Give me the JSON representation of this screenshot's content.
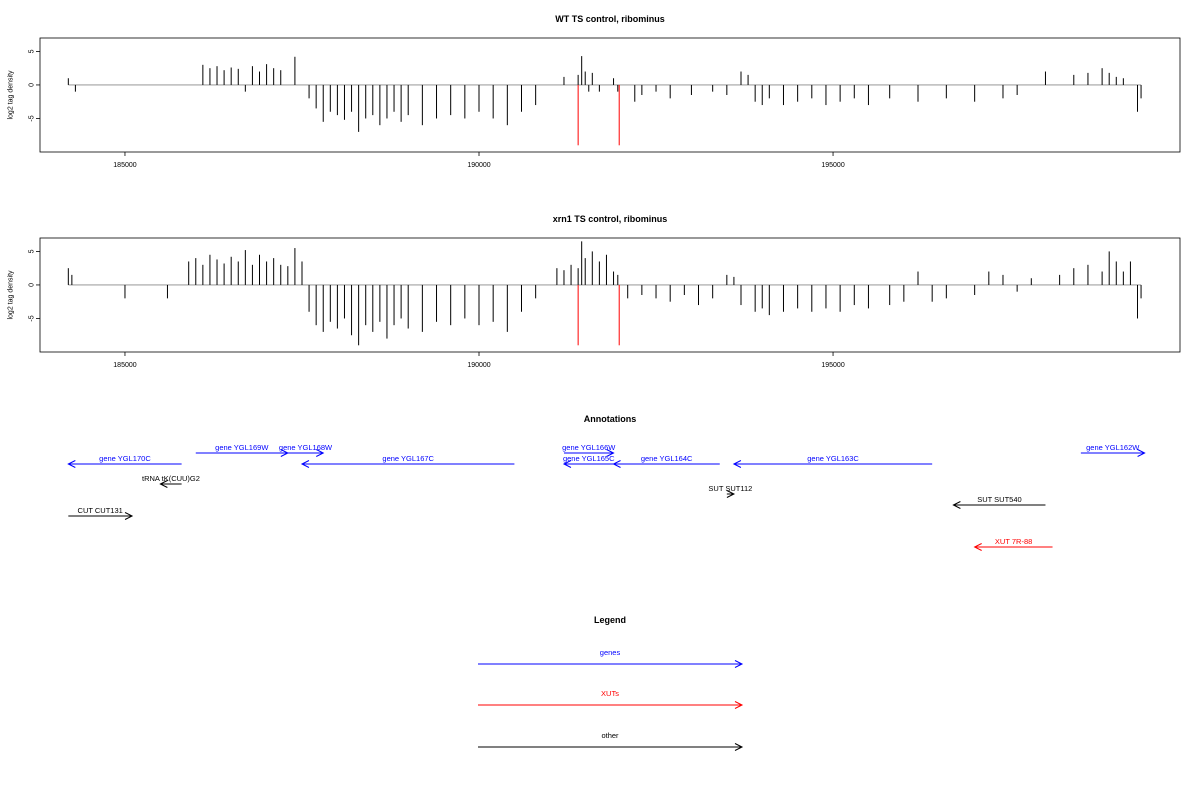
{
  "chart_data": [
    {
      "type": "bar",
      "title": "WT TS control, ribominus",
      "xlabel": "",
      "ylabel": "log2 tag density",
      "xlim": [
        183800,
        199900
      ],
      "ylim": [
        -10,
        7
      ],
      "xticks": [
        185000,
        190000,
        195000
      ],
      "xtick_labels": [
        "185000",
        "190000",
        "195000"
      ],
      "yticks": [
        5,
        0,
        -5
      ],
      "ytick_labels": [
        "5",
        "0",
        "-5"
      ],
      "grid": false,
      "markers": [
        {
          "x": 191400,
          "color": "#ff0000"
        },
        {
          "x": 191980,
          "color": "#ff0000"
        }
      ],
      "series": [
        {
          "values": [
            [
              184200,
              1.0
            ],
            [
              184300,
              -1.0
            ],
            [
              186100,
              3.0
            ],
            [
              186200,
              2.5
            ],
            [
              186300,
              2.8
            ],
            [
              186400,
              2.2
            ],
            [
              186500,
              2.6
            ],
            [
              186600,
              2.4
            ],
            [
              186700,
              -1.0
            ],
            [
              186800,
              2.8
            ],
            [
              186900,
              2.0
            ],
            [
              187000,
              3.1
            ],
            [
              187100,
              2.5
            ],
            [
              187200,
              2.2
            ],
            [
              187400,
              4.2
            ],
            [
              187600,
              -2.0
            ],
            [
              187700,
              -3.5
            ],
            [
              187800,
              -5.5
            ],
            [
              187900,
              -4.0
            ],
            [
              188000,
              -4.5
            ],
            [
              188100,
              -5.2
            ],
            [
              188200,
              -4.0
            ],
            [
              188300,
              -7.0
            ],
            [
              188400,
              -5.0
            ],
            [
              188500,
              -4.5
            ],
            [
              188600,
              -6.0
            ],
            [
              188700,
              -5.0
            ],
            [
              188800,
              -4.0
            ],
            [
              188900,
              -5.5
            ],
            [
              189000,
              -4.5
            ],
            [
              189200,
              -6.0
            ],
            [
              189400,
              -5.0
            ],
            [
              189600,
              -4.5
            ],
            [
              189800,
              -5.0
            ],
            [
              190000,
              -4.0
            ],
            [
              190200,
              -5.0
            ],
            [
              190400,
              -6.0
            ],
            [
              190600,
              -4.0
            ],
            [
              190800,
              -3.0
            ],
            [
              191200,
              1.2
            ],
            [
              191400,
              1.5
            ],
            [
              191450,
              4.3
            ],
            [
              191500,
              2.0
            ],
            [
              191550,
              -1.0
            ],
            [
              191600,
              1.8
            ],
            [
              191700,
              -1.0
            ],
            [
              191900,
              1.0
            ],
            [
              191960,
              -1.0
            ],
            [
              192200,
              -2.5
            ],
            [
              192300,
              -1.5
            ],
            [
              192500,
              -1.0
            ],
            [
              192700,
              -2.0
            ],
            [
              193000,
              -1.5
            ],
            [
              193300,
              -1.0
            ],
            [
              193500,
              -1.5
            ],
            [
              193700,
              2.0
            ],
            [
              193800,
              1.5
            ],
            [
              193900,
              -2.5
            ],
            [
              194000,
              -3.0
            ],
            [
              194100,
              -2.0
            ],
            [
              194300,
              -3.0
            ],
            [
              194500,
              -2.5
            ],
            [
              194700,
              -2.0
            ],
            [
              194900,
              -3.0
            ],
            [
              195100,
              -2.5
            ],
            [
              195300,
              -2.0
            ],
            [
              195500,
              -3.0
            ],
            [
              195800,
              -2.0
            ],
            [
              196200,
              -2.5
            ],
            [
              196600,
              -2.0
            ],
            [
              197000,
              -2.5
            ],
            [
              197400,
              -2.0
            ],
            [
              197600,
              -1.5
            ],
            [
              198000,
              2.0
            ],
            [
              198400,
              1.5
            ],
            [
              198600,
              1.8
            ],
            [
              198800,
              2.5
            ],
            [
              198900,
              1.8
            ],
            [
              199000,
              1.2
            ],
            [
              199100,
              1.0
            ],
            [
              199300,
              -4.0
            ],
            [
              199350,
              -2.0
            ]
          ]
        }
      ]
    },
    {
      "type": "bar",
      "title": "xrn1 TS control, ribominus",
      "xlabel": "",
      "ylabel": "log2 tag density",
      "xlim": [
        183800,
        199900
      ],
      "ylim": [
        -10,
        7
      ],
      "xticks": [
        185000,
        190000,
        195000
      ],
      "xtick_labels": [
        "185000",
        "190000",
        "195000"
      ],
      "yticks": [
        5,
        0,
        -5
      ],
      "ytick_labels": [
        "5",
        "0",
        "-5"
      ],
      "grid": false,
      "markers": [
        {
          "x": 191400,
          "color": "#ff0000"
        },
        {
          "x": 191980,
          "color": "#ff0000"
        }
      ],
      "series": [
        {
          "values": [
            [
              184200,
              2.5
            ],
            [
              184250,
              1.5
            ],
            [
              185000,
              -2.0
            ],
            [
              185600,
              -2.0
            ],
            [
              185900,
              3.5
            ],
            [
              186000,
              4.0
            ],
            [
              186100,
              3.0
            ],
            [
              186200,
              4.5
            ],
            [
              186300,
              3.8
            ],
            [
              186400,
              3.2
            ],
            [
              186500,
              4.2
            ],
            [
              186600,
              3.5
            ],
            [
              186700,
              5.2
            ],
            [
              186800,
              3.0
            ],
            [
              186900,
              4.5
            ],
            [
              187000,
              3.5
            ],
            [
              187100,
              4.0
            ],
            [
              187200,
              3.0
            ],
            [
              187300,
              2.8
            ],
            [
              187400,
              5.5
            ],
            [
              187500,
              3.5
            ],
            [
              187600,
              -4.0
            ],
            [
              187700,
              -6.0
            ],
            [
              187800,
              -7.0
            ],
            [
              187900,
              -5.5
            ],
            [
              188000,
              -6.5
            ],
            [
              188100,
              -5.0
            ],
            [
              188200,
              -7.5
            ],
            [
              188300,
              -9.0
            ],
            [
              188400,
              -6.0
            ],
            [
              188500,
              -7.0
            ],
            [
              188600,
              -5.5
            ],
            [
              188700,
              -8.0
            ],
            [
              188800,
              -6.0
            ],
            [
              188900,
              -5.0
            ],
            [
              189000,
              -6.5
            ],
            [
              189200,
              -7.0
            ],
            [
              189400,
              -5.5
            ],
            [
              189600,
              -6.0
            ],
            [
              189800,
              -5.0
            ],
            [
              190000,
              -6.0
            ],
            [
              190200,
              -5.5
            ],
            [
              190400,
              -7.0
            ],
            [
              190600,
              -4.0
            ],
            [
              190800,
              -2.0
            ],
            [
              191100,
              2.5
            ],
            [
              191200,
              2.2
            ],
            [
              191300,
              3.0
            ],
            [
              191400,
              2.5
            ],
            [
              191450,
              6.5
            ],
            [
              191500,
              4.0
            ],
            [
              191600,
              5.0
            ],
            [
              191700,
              3.5
            ],
            [
              191800,
              4.5
            ],
            [
              191900,
              2.0
            ],
            [
              191960,
              1.5
            ],
            [
              192100,
              -2.0
            ],
            [
              192300,
              -1.5
            ],
            [
              192500,
              -2.0
            ],
            [
              192700,
              -2.5
            ],
            [
              192900,
              -1.5
            ],
            [
              193100,
              -3.0
            ],
            [
              193300,
              -2.0
            ],
            [
              193500,
              1.5
            ],
            [
              193600,
              1.2
            ],
            [
              193700,
              -3.0
            ],
            [
              193900,
              -4.0
            ],
            [
              194000,
              -3.5
            ],
            [
              194100,
              -4.5
            ],
            [
              194300,
              -4.0
            ],
            [
              194500,
              -3.5
            ],
            [
              194700,
              -4.0
            ],
            [
              194900,
              -3.5
            ],
            [
              195100,
              -4.0
            ],
            [
              195300,
              -3.0
            ],
            [
              195500,
              -3.5
            ],
            [
              195800,
              -3.0
            ],
            [
              196000,
              -2.5
            ],
            [
              196200,
              2.0
            ],
            [
              196400,
              -2.5
            ],
            [
              196600,
              -2.0
            ],
            [
              197000,
              -1.5
            ],
            [
              197200,
              2.0
            ],
            [
              197400,
              1.5
            ],
            [
              197600,
              -1.0
            ],
            [
              197800,
              1.0
            ],
            [
              198200,
              1.5
            ],
            [
              198400,
              2.5
            ],
            [
              198600,
              3.0
            ],
            [
              198800,
              2.0
            ],
            [
              198900,
              5.0
            ],
            [
              199000,
              3.5
            ],
            [
              199100,
              2.0
            ],
            [
              199200,
              3.5
            ],
            [
              199300,
              -5.0
            ],
            [
              199350,
              -2.0
            ]
          ]
        }
      ]
    },
    {
      "type": "annotation-track",
      "title": "Annotations",
      "features": [
        {
          "label": "gene YGL170C",
          "start": 184200,
          "end": 185800,
          "direction": "left",
          "color": "#0000ff",
          "row": 2
        },
        {
          "label": "gene YGL169W",
          "start": 186000,
          "end": 187300,
          "direction": "right",
          "color": "#0000ff",
          "row": 1
        },
        {
          "label": "gene YGL168W",
          "start": 187300,
          "end": 187800,
          "direction": "right",
          "color": "#0000ff",
          "row": 1
        },
        {
          "label": "gene YGL167C",
          "start": 187500,
          "end": 190500,
          "direction": "left",
          "color": "#0000ff",
          "row": 2
        },
        {
          "label": "gene YGL166W",
          "start": 191200,
          "end": 191900,
          "direction": "right",
          "color": "#0000ff",
          "row": 1
        },
        {
          "label": "gene YGL165C",
          "start": 191200,
          "end": 191900,
          "direction": "left",
          "color": "#0000ff",
          "row": 2
        },
        {
          "label": "gene YGL164C",
          "start": 191900,
          "end": 193400,
          "direction": "left",
          "color": "#0000ff",
          "row": 2
        },
        {
          "label": "gene YGL163C",
          "start": 193600,
          "end": 196400,
          "direction": "left",
          "color": "#0000ff",
          "row": 2
        },
        {
          "label": "gene YGL162W",
          "start": 198500,
          "end": 199400,
          "direction": "right",
          "color": "#0000ff",
          "row": 1
        },
        {
          "label": "tRNA tK(CUU)G2",
          "start": 185500,
          "end": 185800,
          "direction": "left",
          "color": "#000000",
          "row": 3
        },
        {
          "label": "SUT SUT112",
          "start": 193500,
          "end": 193600,
          "direction": "right",
          "color": "#000000",
          "row": 4
        },
        {
          "label": "SUT SUT540",
          "start": 196700,
          "end": 198000,
          "direction": "left",
          "color": "#000000",
          "row": 5
        },
        {
          "label": "CUT CUT131",
          "start": 184200,
          "end": 185100,
          "direction": "right",
          "color": "#000000",
          "row": 6
        },
        {
          "label": "XUT 7R-88",
          "start": 197000,
          "end": 198100,
          "direction": "left",
          "color": "#ff0000",
          "row": 7
        }
      ]
    },
    {
      "type": "legend",
      "title": "Legend",
      "entries": [
        {
          "label": "genes",
          "color": "#0000ff"
        },
        {
          "label": "XUTs",
          "color": "#ff0000"
        },
        {
          "label": "other",
          "color": "#000000"
        }
      ]
    }
  ]
}
